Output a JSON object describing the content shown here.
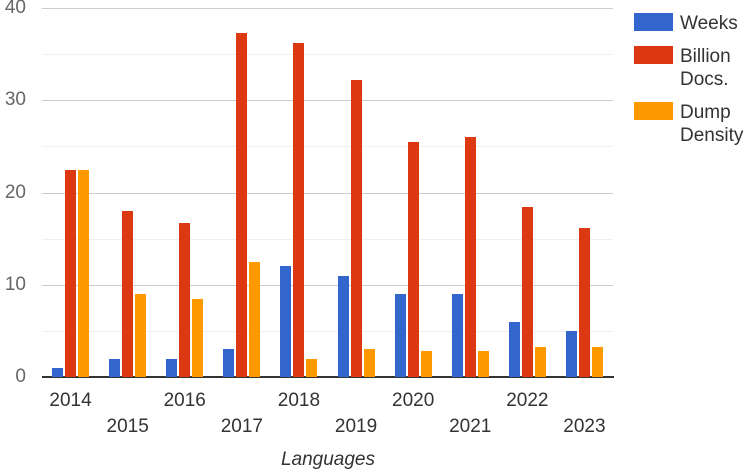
{
  "chart_data": {
    "type": "bar",
    "title": "",
    "xlabel": "Languages",
    "ylabel": "",
    "ylim": [
      0,
      40
    ],
    "yticks": [
      0,
      10,
      20,
      30,
      40
    ],
    "minor_gridlines": [
      5,
      15,
      25,
      35
    ],
    "grid": true,
    "legend_position": "right",
    "background_color": "#ffffff",
    "axis_line_color": "#333333",
    "major_gridline_color": "#cccccc",
    "minor_gridline_color": "#f0f0f0",
    "categories": [
      "2014",
      "2015",
      "2016",
      "2017",
      "2018",
      "2019",
      "2020",
      "2021",
      "2022",
      "2023"
    ],
    "series": [
      {
        "name": "Weeks",
        "color": "#3366CC",
        "values": [
          1,
          2,
          2,
          3,
          12,
          11,
          9,
          9,
          6,
          5
        ]
      },
      {
        "name": "Billion Docs.",
        "color": "#DC3912",
        "values": [
          22.4,
          18,
          16.7,
          37.3,
          36.2,
          32.2,
          25.5,
          26,
          18.4,
          16.2
        ]
      },
      {
        "name": "Dump Density",
        "color": "#FF9900",
        "values": [
          22.4,
          9,
          8.5,
          12.5,
          2,
          3,
          2.8,
          2.8,
          3.2,
          3.3
        ]
      }
    ]
  }
}
